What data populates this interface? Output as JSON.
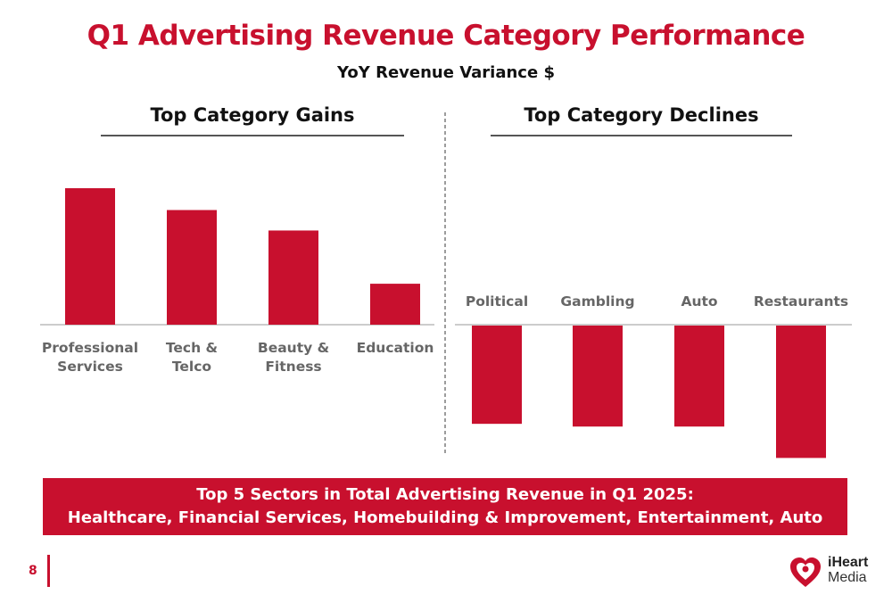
{
  "chart_data": {
    "type": "bar",
    "title": "Q1 Advertising Revenue Category Performance",
    "subtitle": "YoY Revenue Variance $",
    "panels": [
      {
        "heading": "Top Category Gains",
        "categories": [
          "Professional Services",
          "Tech & Telco",
          "Beauty & Fitness",
          "Education"
        ],
        "label_lines": [
          [
            "Professional",
            "Services"
          ],
          [
            "Tech &",
            "Telco"
          ],
          [
            "Beauty &",
            "Fitness"
          ],
          [
            "Education"
          ]
        ],
        "values": [
          100,
          84,
          69,
          30
        ]
      },
      {
        "heading": "Top Category Declines",
        "categories": [
          "Political",
          "Gambling",
          "Auto",
          "Restaurants"
        ],
        "label_lines": [
          [
            "Political"
          ],
          [
            "Gambling"
          ],
          [
            "Auto"
          ],
          [
            "Restaurants"
          ]
        ],
        "values": [
          -72,
          -74,
          -74,
          -97
        ]
      }
    ],
    "colors": {
      "bar": "#c8102e",
      "label": "#666666",
      "axis": "#999999"
    }
  },
  "banner": {
    "line1": "Top 5 Sectors in Total Advertising Revenue in Q1 2025:",
    "line2": "Healthcare, Financial Services, Homebuilding & Improvement, Entertainment, Auto"
  },
  "footer": {
    "page_number": "8",
    "logo_line1": "iHeart",
    "logo_line2": "Media"
  }
}
